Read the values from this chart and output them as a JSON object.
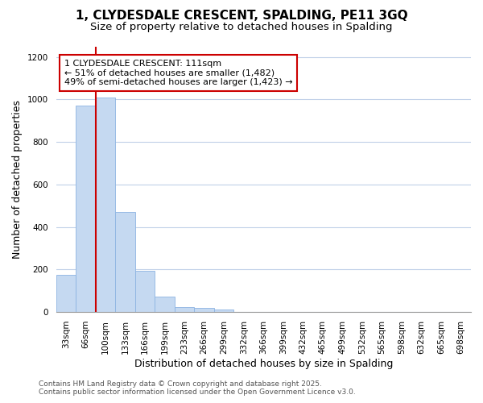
{
  "title": "1, CLYDESDALE CRESCENT, SPALDING, PE11 3GQ",
  "subtitle": "Size of property relative to detached houses in Spalding",
  "xlabel": "Distribution of detached houses by size in Spalding",
  "ylabel": "Number of detached properties",
  "bar_labels": [
    "33sqm",
    "66sqm",
    "100sqm",
    "133sqm",
    "166sqm",
    "199sqm",
    "233sqm",
    "266sqm",
    "299sqm",
    "332sqm",
    "366sqm",
    "399sqm",
    "432sqm",
    "465sqm",
    "499sqm",
    "532sqm",
    "565sqm",
    "598sqm",
    "632sqm",
    "665sqm",
    "698sqm"
  ],
  "bar_values": [
    175,
    970,
    1010,
    470,
    192,
    72,
    25,
    18,
    10,
    0,
    0,
    0,
    0,
    0,
    0,
    0,
    0,
    0,
    0,
    0,
    0
  ],
  "bar_color": "#c5d9f1",
  "bar_edgecolor": "#8db4e2",
  "vline_color": "#cc0000",
  "vline_index": 2,
  "annotation_text": "1 CLYDESDALE CRESCENT: 111sqm\n← 51% of detached houses are smaller (1,482)\n49% of semi-detached houses are larger (1,423) →",
  "annotation_box_facecolor": "#ffffff",
  "annotation_box_edgecolor": "#cc0000",
  "ylim": [
    0,
    1250
  ],
  "yticks": [
    0,
    200,
    400,
    600,
    800,
    1000,
    1200
  ],
  "plot_bg_color": "#ffffff",
  "fig_bg_color": "#ffffff",
  "grid_color": "#c0d0e8",
  "footer_line1": "Contains HM Land Registry data © Crown copyright and database right 2025.",
  "footer_line2": "Contains public sector information licensed under the Open Government Licence v3.0.",
  "title_fontsize": 11,
  "subtitle_fontsize": 9.5,
  "axis_label_fontsize": 9,
  "tick_fontsize": 7.5,
  "annotation_fontsize": 8,
  "footer_fontsize": 6.5
}
